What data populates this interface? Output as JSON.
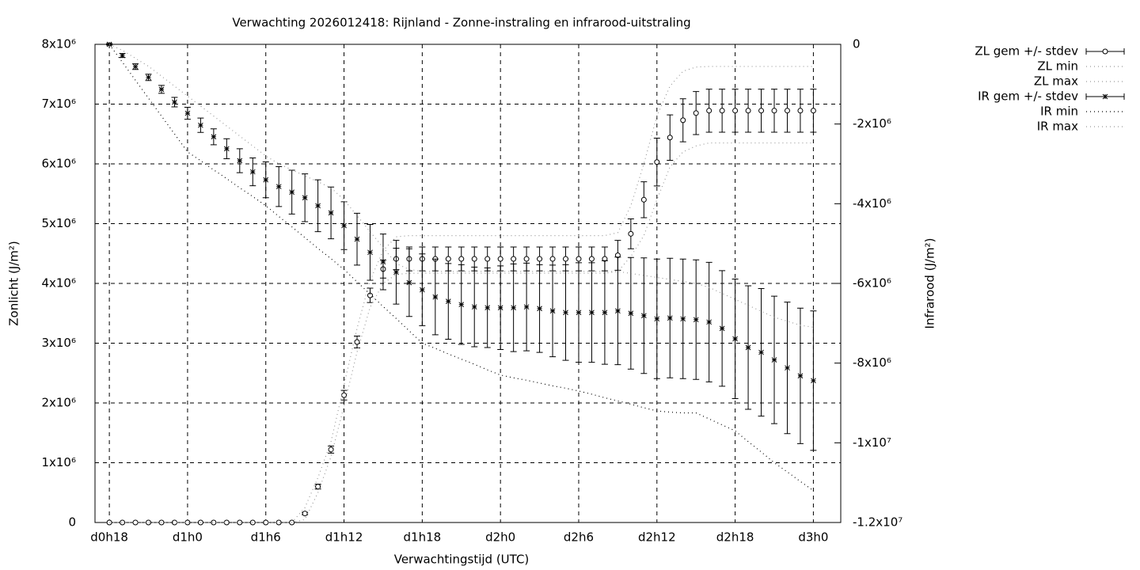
{
  "chart_data": {
    "type": "errorbar-dual",
    "title": "Verwachting 2026012418: Rijnland - Zonne-instraling en infrarood-uitstraling",
    "xlabel": "Verwachtingstijd (UTC)",
    "ylabel": "Zonlicht (J/m²)",
    "y2label": "Infrarood (J/m²)",
    "grid": true,
    "legend": "outside-right",
    "xlim": [
      16.9,
      74.1
    ],
    "xticks": [
      {
        "value": 18,
        "label": "d0h18"
      },
      {
        "value": 24,
        "label": "d1h0"
      },
      {
        "value": 30,
        "label": "d1h6"
      },
      {
        "value": 36,
        "label": "d1h12"
      },
      {
        "value": 42,
        "label": "d1h18"
      },
      {
        "value": 48,
        "label": "d2h0"
      },
      {
        "value": 54,
        "label": "d2h6"
      },
      {
        "value": 60,
        "label": "d2h12"
      },
      {
        "value": 66,
        "label": "d2h18"
      },
      {
        "value": 72,
        "label": "d3h0"
      }
    ],
    "ylim": [
      0,
      8000000.0
    ],
    "yticks": [
      0,
      {
        "value": 1000000.0,
        "label": "1x10⁶"
      },
      {
        "value": 2000000.0,
        "label": "2x10⁶"
      },
      {
        "value": 3000000.0,
        "label": "3x10⁶"
      },
      {
        "value": 4000000.0,
        "label": "4x10⁶"
      },
      {
        "value": 5000000.0,
        "label": "5x10⁶"
      },
      {
        "value": 6000000.0,
        "label": "6x10⁶"
      },
      {
        "value": 7000000.0,
        "label": "7x10⁶"
      },
      {
        "value": 8000000.0,
        "label": "8x10⁶"
      }
    ],
    "y2lim": [
      -12000000.0,
      0
    ],
    "y2ticks": [
      0,
      {
        "value": -2000000.0,
        "label": "-2x10⁶"
      },
      {
        "value": -4000000.0,
        "label": "-4x10⁶"
      },
      {
        "value": -6000000.0,
        "label": "-6x10⁶"
      },
      {
        "value": -8000000.0,
        "label": "-8x10⁶"
      },
      {
        "value": -10000000.0,
        "label": "-1x10⁷"
      },
      {
        "value": -12000000.0,
        "label": "-1.2x10⁷"
      }
    ],
    "x": [
      18,
      19,
      20,
      21,
      22,
      23,
      24,
      25,
      26,
      27,
      28,
      29,
      30,
      31,
      32,
      33,
      34,
      35,
      36,
      37,
      38,
      39,
      40,
      41,
      42,
      43,
      44,
      45,
      46,
      47,
      48,
      49,
      50,
      51,
      52,
      53,
      54,
      55,
      56,
      57,
      58,
      59,
      60,
      61,
      62,
      63,
      64,
      65,
      66,
      67,
      68,
      69,
      70,
      71,
      72
    ],
    "series": [
      {
        "name": "ZL gem +/- stdev",
        "style": "errorbars",
        "marker": "circle",
        "color": "#000000",
        "values": [
          0,
          0,
          0,
          0,
          0,
          0,
          0,
          0,
          0,
          0,
          0,
          0,
          0,
          0,
          0,
          150000.0,
          600000.0,
          1220000.0,
          2130000.0,
          3020000.0,
          3800000.0,
          4240000.0,
          4410000.0,
          4410000.0,
          4410000.0,
          4410000.0,
          4410000.0,
          4410000.0,
          4410000.0,
          4410000.0,
          4410000.0,
          4410000.0,
          4410000.0,
          4410000.0,
          4410000.0,
          4410000.0,
          4410000.0,
          4410000.0,
          4410000.0,
          4470000.0,
          4830000.0,
          5400000.0,
          6030000.0,
          6440000.0,
          6730000.0,
          6850000.0,
          6890000.0,
          6890000.0,
          6890000.0,
          6890000.0,
          6890000.0,
          6890000.0,
          6890000.0,
          6890000.0,
          6890000.0
        ],
        "errors": [
          0,
          0,
          0,
          0,
          0,
          0,
          0,
          0,
          0,
          0,
          0,
          0,
          0,
          0,
          0,
          20000.0,
          40000.0,
          60000.0,
          80000.0,
          100000.0,
          120000.0,
          150000.0,
          180000.0,
          200000.0,
          200000.0,
          200000.0,
          200000.0,
          200000.0,
          200000.0,
          200000.0,
          200000.0,
          200000.0,
          200000.0,
          200000.0,
          200000.0,
          200000.0,
          200000.0,
          200000.0,
          200000.0,
          250000.0,
          250000.0,
          300000.0,
          400000.0,
          380000.0,
          360000.0,
          360000.0,
          360000.0,
          360000.0,
          360000.0,
          360000.0,
          360000.0,
          360000.0,
          360000.0,
          360000.0,
          360000.0
        ]
      },
      {
        "name": "ZL min",
        "style": "dotted",
        "color": "#999999",
        "values": [
          0,
          0,
          0,
          0,
          0,
          0,
          0,
          0,
          0,
          0,
          0,
          0,
          0,
          0,
          0,
          50000.0,
          500000.0,
          1100000.0,
          1950000.0,
          2850000.0,
          3600000.0,
          4000000.0,
          4150000.0,
          4170000.0,
          4170000.0,
          4170000.0,
          4170000.0,
          4170000.0,
          4170000.0,
          4170000.0,
          4170000.0,
          4170000.0,
          4170000.0,
          4170000.0,
          4170000.0,
          4170000.0,
          4170000.0,
          4170000.0,
          4170000.0,
          4200000.0,
          4450000.0,
          4800000.0,
          5400000.0,
          5950000.0,
          6200000.0,
          6300000.0,
          6350000.0,
          6350000.0,
          6350000.0,
          6350000.0,
          6350000.0,
          6350000.0,
          6350000.0,
          6350000.0,
          6350000.0
        ]
      },
      {
        "name": "ZL max",
        "style": "dotted",
        "color": "#999999",
        "values": [
          0,
          0,
          0,
          0,
          0,
          0,
          0,
          0,
          0,
          0,
          0,
          0,
          0,
          0,
          0,
          250000.0,
          750000.0,
          1350000.0,
          2300000.0,
          3250000.0,
          4050000.0,
          4550000.0,
          4780000.0,
          4800000.0,
          4800000.0,
          4800000.0,
          4800000.0,
          4800000.0,
          4800000.0,
          4800000.0,
          4800000.0,
          4800000.0,
          4800000.0,
          4800000.0,
          4800000.0,
          4800000.0,
          4800000.0,
          4800000.0,
          4800000.0,
          4850000.0,
          5300000.0,
          6000000.0,
          6800000.0,
          7300000.0,
          7550000.0,
          7620000.0,
          7630000.0,
          7630000.0,
          7630000.0,
          7630000.0,
          7630000.0,
          7630000.0,
          7630000.0,
          7630000.0,
          7630000.0
        ]
      },
      {
        "name": "IR gem +/- stdev",
        "style": "errorbars",
        "marker": "star",
        "axis": "y2",
        "color": "#000000",
        "values": [
          0,
          -280000.0,
          -560000.0,
          -830000.0,
          -1130000.0,
          -1450000.0,
          -1730000.0,
          -2030000.0,
          -2320000.0,
          -2620000.0,
          -2920000.0,
          -3200000.0,
          -3400000.0,
          -3570000.0,
          -3710000.0,
          -3850000.0,
          -4050000.0,
          -4230000.0,
          -4550000.0,
          -4890000.0,
          -5220000.0,
          -5460000.0,
          -5720000.0,
          -5980000.0,
          -6160000.0,
          -6340000.0,
          -6450000.0,
          -6530000.0,
          -6590000.0,
          -6610000.0,
          -6610000.0,
          -6610000.0,
          -6590000.0,
          -6630000.0,
          -6690000.0,
          -6730000.0,
          -6730000.0,
          -6730000.0,
          -6730000.0,
          -6690000.0,
          -6750000.0,
          -6810000.0,
          -6890000.0,
          -6870000.0,
          -6890000.0,
          -6910000.0,
          -6970000.0,
          -7130000.0,
          -7390000.0,
          -7610000.0,
          -7730000.0,
          -7920000.0,
          -8120000.0,
          -8320000.0,
          -8440000.0
        ],
        "errors": [
          20000.0,
          50000.0,
          70000.0,
          80000.0,
          100000.0,
          120000.0,
          150000.0,
          180000.0,
          200000.0,
          250000.0,
          300000.0,
          350000.0,
          450000.0,
          500000.0,
          550000.0,
          600000.0,
          650000.0,
          650000.0,
          600000.0,
          650000.0,
          700000.0,
          700000.0,
          800000.0,
          850000.0,
          900000.0,
          950000.0,
          950000.0,
          1000000.0,
          1000000.0,
          1000000.0,
          1050000.0,
          1100000.0,
          1100000.0,
          1100000.0,
          1150000.0,
          1200000.0,
          1250000.0,
          1250000.0,
          1300000.0,
          1350000.0,
          1400000.0,
          1450000.0,
          1500000.0,
          1500000.0,
          1500000.0,
          1500000.0,
          1500000.0,
          1450000.0,
          1500000.0,
          1550000.0,
          1600000.0,
          1600000.0,
          1650000.0,
          1700000.0,
          1750000.0
        ]
      },
      {
        "name": "IR min",
        "style": "dotted",
        "axis": "y2",
        "color": "#000000",
        "values": [
          0,
          -450000.0,
          -900000.0,
          -1350000.0,
          -1800000.0,
          -2250000.0,
          -2700000.0,
          -2920000.0,
          -3150000.0,
          -3370000.0,
          -3600000.0,
          -3820000.0,
          -4050000.0,
          -4320000.0,
          -4580000.0,
          -4850000.0,
          -5120000.0,
          -5380000.0,
          -5650000.0,
          -5960000.0,
          -6270000.0,
          -6580000.0,
          -6880000.0,
          -7190000.0,
          -7500000.0,
          -7630000.0,
          -7770000.0,
          -7900000.0,
          -8030000.0,
          -8170000.0,
          -8300000.0,
          -8370000.0,
          -8430000.0,
          -8500000.0,
          -8570000.0,
          -8630000.0,
          -8700000.0,
          -8780000.0,
          -8870000.0,
          -8950000.0,
          -9030000.0,
          -9120000.0,
          -9200000.0,
          -9230000.0,
          -9250000.0,
          -9250000.0,
          -9400000.0,
          -9550000.0,
          -9700000.0,
          -9970000.0,
          -10230000.0,
          -10500000.0,
          -10730000.0,
          -10970000.0,
          -11200000.0
        ]
      },
      {
        "name": "IR max",
        "style": "dotted",
        "axis": "y2",
        "color": "#999999",
        "values": [
          0,
          -150000.0,
          -350000.0,
          -550000.0,
          -800000.0,
          -1050000.0,
          -1300000.0,
          -1550000.0,
          -1800000.0,
          -2050000.0,
          -2300000.0,
          -2550000.0,
          -2800000.0,
          -3000000.0,
          -3150000.0,
          -3300000.0,
          -3450000.0,
          -3600000.0,
          -3900000.0,
          -4300000.0,
          -4700000.0,
          -5100000.0,
          -5500000.0,
          -5650000.0,
          -5700000.0,
          -5700000.0,
          -5700000.0,
          -5700000.0,
          -5700000.0,
          -5700000.0,
          -5700000.0,
          -5700000.0,
          -5700000.0,
          -5700000.0,
          -5700000.0,
          -5700000.0,
          -5700000.0,
          -5700000.0,
          -5700000.0,
          -5700000.0,
          -5750000.0,
          -5800000.0,
          -5850000.0,
          -5900000.0,
          -5950000.0,
          -6000000.0,
          -6100000.0,
          -6250000.0,
          -6400000.0,
          -6550000.0,
          -6700000.0,
          -6850000.0,
          -6950000.0,
          -7050000.0,
          -7100000.0
        ]
      }
    ]
  }
}
